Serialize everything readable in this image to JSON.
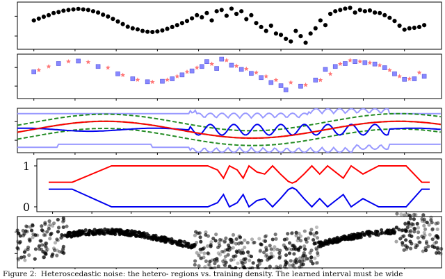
{
  "caption": {
    "label": "Figure 2:",
    "text": "Heteroscedastic noise: the hetero- regions vs. training density. The learned interval must be wide"
  },
  "colors": {
    "black_points": "#000000",
    "red": "#ff0000",
    "blue": "#0000ee",
    "light_blue": "#9999ff",
    "light_red": "#ff9999",
    "green_dashed": "#228b22",
    "square_fill": "#8888ff",
    "star_fill": "#ff7777"
  },
  "chart_data": [
    {
      "type": "scatter",
      "panel": 1,
      "marker": "circle",
      "x": [
        1.0,
        1.12,
        1.24,
        1.36,
        1.48,
        1.6,
        1.72,
        1.84,
        1.96,
        2.08,
        2.2,
        2.32,
        2.44,
        2.56,
        2.68,
        2.8,
        2.92,
        3.04,
        3.16,
        3.28,
        3.4,
        3.52,
        3.64,
        3.76,
        3.88,
        4.0,
        4.12,
        4.24,
        4.36,
        4.48,
        4.6,
        4.72,
        4.84,
        4.96,
        5.08,
        5.2,
        5.32,
        5.44,
        5.56,
        5.68,
        5.8,
        5.92,
        6.04,
        6.16,
        6.28,
        6.4,
        6.52,
        6.64,
        6.76,
        6.88,
        7.0,
        7.12,
        7.24,
        7.36,
        7.48,
        7.6,
        7.72,
        7.84,
        7.96,
        8.08,
        8.2,
        8.32,
        8.44,
        8.56,
        8.68,
        8.8,
        8.92,
        9.04,
        9.16,
        9.28,
        9.4,
        9.52,
        9.64,
        9.76,
        9.88,
        10.0,
        10.12,
        10.24,
        10.36,
        10.48
      ],
      "y": [
        0.8,
        0.87,
        0.94,
        1.0,
        1.08,
        1.12,
        1.17,
        1.2,
        1.22,
        1.24,
        1.22,
        1.2,
        1.15,
        1.1,
        1.02,
        0.95,
        0.86,
        0.76,
        0.66,
        0.56,
        0.5,
        0.46,
        0.4,
        0.37,
        0.36,
        0.38,
        0.42,
        0.48,
        0.55,
        0.62,
        0.7,
        0.78,
        0.88,
        1.0,
        0.92,
        1.08,
        0.8,
        1.15,
        1.2,
        0.98,
        1.25,
        1.05,
        1.15,
        0.85,
        1.0,
        0.7,
        0.55,
        0.4,
        0.6,
        0.3,
        0.25,
        0.1,
        0.0,
        0.4,
        0.2,
        -0.05,
        0.3,
        0.5,
        0.8,
        0.62,
        1.05,
        1.15,
        1.2,
        1.25,
        1.28,
        1.1,
        1.2,
        1.15,
        1.18,
        1.1,
        1.08,
        1.0,
        0.9,
        0.78,
        0.6,
        0.45,
        0.5,
        0.52,
        0.55,
        0.62
      ]
    },
    {
      "type": "scatter",
      "panel": 2,
      "series": [
        {
          "marker": "square",
          "x": [
            1.0,
            1.6,
            2.08,
            2.56,
            3.04,
            3.4,
            3.76,
            4.12,
            4.36,
            4.6,
            4.84,
            5.08,
            5.2,
            5.44,
            5.56,
            5.8,
            6.04,
            6.28,
            6.52,
            6.76,
            7.0,
            7.12,
            7.48,
            7.84,
            8.08,
            8.32,
            8.56,
            8.8,
            9.04,
            9.28,
            9.52,
            9.76,
            10.0,
            10.24,
            10.48
          ],
          "y": [
            0.78,
            1.12,
            1.22,
            1.0,
            0.7,
            0.5,
            0.38,
            0.4,
            0.5,
            0.66,
            0.82,
            1.0,
            1.2,
            0.92,
            1.3,
            1.05,
            0.88,
            0.72,
            0.55,
            0.35,
            0.22,
            0.05,
            0.2,
            0.45,
            0.88,
            1.0,
            1.12,
            1.2,
            1.15,
            1.1,
            0.95,
            0.7,
            0.48,
            0.5,
            0.6
          ]
        },
        {
          "marker": "star",
          "x": [
            1.12,
            1.36,
            1.84,
            2.32,
            2.8,
            3.16,
            3.52,
            3.88,
            4.24,
            4.48,
            4.72,
            4.96,
            5.32,
            5.68,
            5.92,
            6.16,
            6.4,
            6.64,
            6.88,
            7.24,
            7.6,
            7.96,
            8.2,
            8.44,
            8.68,
            8.92,
            9.16,
            9.4,
            9.64,
            9.88,
            10.12,
            10.36
          ],
          "y": [
            0.85,
            1.0,
            1.2,
            1.18,
            0.95,
            0.65,
            0.46,
            0.37,
            0.46,
            0.6,
            0.78,
            0.95,
            1.1,
            1.25,
            1.02,
            0.9,
            0.75,
            0.6,
            0.45,
            0.35,
            0.25,
            0.45,
            0.7,
            1.1,
            1.25,
            1.2,
            1.15,
            1.05,
            0.85,
            0.6,
            0.5,
            0.75
          ]
        }
      ]
    },
    {
      "type": "line",
      "panel": 3,
      "series": [
        {
          "style": "light-red-mean"
        },
        {
          "style": "blue-mean"
        },
        {
          "style": "light-blue-upper"
        },
        {
          "style": "light-blue-lower"
        },
        {
          "style": "green-dashed-upper"
        },
        {
          "style": "green-dashed-center"
        },
        {
          "style": "green-dashed-lower"
        },
        {
          "style": "red-mean"
        }
      ]
    },
    {
      "type": "line",
      "panel": 4,
      "yticks": [
        "0",
        "1"
      ],
      "ylim": [
        0,
        1
      ],
      "series": [
        {
          "color": "red",
          "x": [
            0.9,
            1.5,
            2.5,
            3.5,
            4.5,
            4.95,
            5.2,
            5.35,
            5.5,
            5.7,
            5.85,
            6.0,
            6.2,
            6.4,
            6.6,
            6.8,
            7.0,
            7.1,
            7.2,
            7.4,
            7.6,
            7.8,
            8.0,
            8.2,
            8.4,
            8.6,
            8.9,
            9.1,
            9.3,
            9.5,
            10.0,
            10.4,
            10.6
          ],
          "y": [
            0.6,
            0.6,
            1.0,
            1.0,
            1.0,
            1.0,
            0.9,
            0.7,
            1.0,
            0.9,
            0.7,
            1.0,
            0.85,
            0.8,
            1.0,
            0.8,
            0.62,
            0.58,
            0.62,
            0.8,
            1.0,
            0.8,
            1.0,
            0.85,
            0.7,
            1.0,
            0.8,
            0.9,
            1.0,
            1.0,
            1.0,
            0.6,
            0.6
          ]
        },
        {
          "color": "blue",
          "x": [
            0.9,
            1.5,
            2.5,
            3.5,
            4.5,
            4.95,
            5.2,
            5.35,
            5.5,
            5.7,
            5.85,
            6.0,
            6.2,
            6.4,
            6.6,
            6.8,
            7.0,
            7.1,
            7.2,
            7.4,
            7.6,
            7.8,
            8.0,
            8.2,
            8.4,
            8.6,
            8.9,
            9.1,
            9.3,
            9.5,
            10.0,
            10.4,
            10.6
          ],
          "y": [
            0.43,
            0.43,
            0.0,
            0.0,
            0.0,
            0.0,
            0.1,
            0.3,
            0.0,
            0.1,
            0.3,
            0.0,
            0.15,
            0.2,
            0.0,
            0.2,
            0.42,
            0.47,
            0.42,
            0.2,
            0.0,
            0.2,
            0.0,
            0.15,
            0.3,
            0.0,
            0.2,
            0.1,
            0.0,
            0.0,
            0.0,
            0.43,
            0.43
          ]
        }
      ]
    },
    {
      "type": "scatter",
      "panel": 5,
      "marker": "translucent-circle"
    }
  ]
}
